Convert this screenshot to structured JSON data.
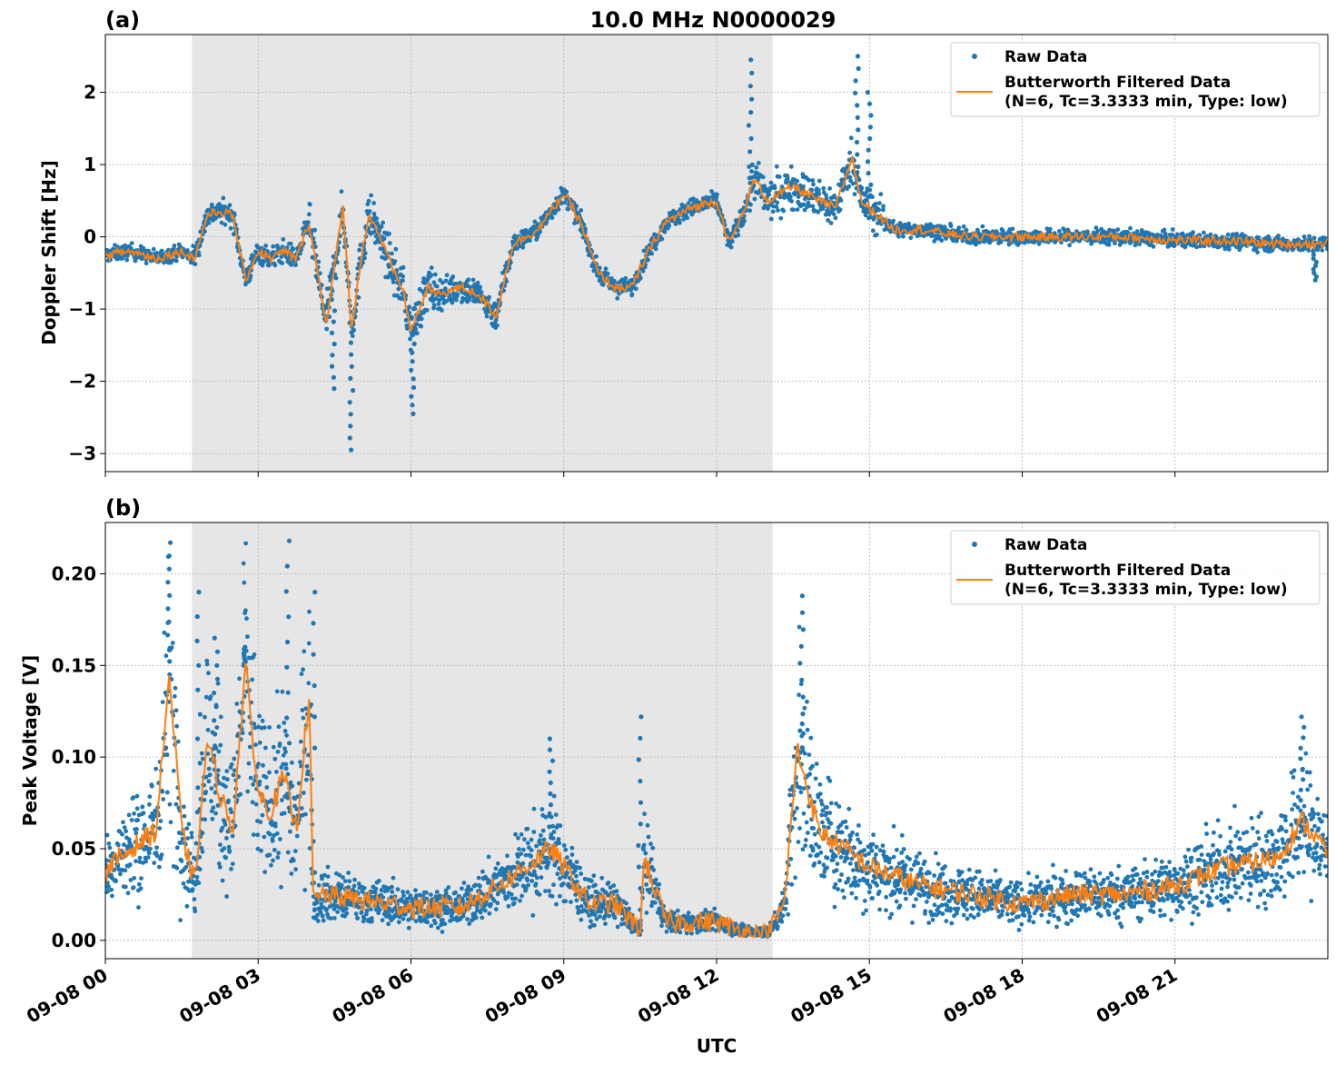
{
  "figure": {
    "title": "10.0 MHz N0000029",
    "xlabel": "UTC",
    "x_tick_labels": [
      "09-08 00",
      "09-08 03",
      "09-08 06",
      "09-08 09",
      "09-08 12",
      "09-08 15",
      "09-08 18",
      "09-08 21"
    ]
  },
  "colors": {
    "raw": "#1f77b4",
    "filtered": "#ff7f0e",
    "shade": "#e6e6e6",
    "grid": "#b0b0b0"
  },
  "panels": {
    "a": {
      "label": "(a)",
      "ylabel": "Doppler Shift [Hz]",
      "y_tick_labels": [
        "2",
        "1",
        "0",
        "−1",
        "−2",
        "−3"
      ],
      "legend": {
        "raw": "Raw Data",
        "filt_line1": "Butterworth Filtered Data",
        "filt_line2": "(N=6, Tc=3.3333 min, Type: low)"
      }
    },
    "b": {
      "label": "(b)",
      "ylabel": "Peak Voltage [V]",
      "y_tick_labels": [
        "0.20",
        "0.15",
        "0.10",
        "0.05",
        "0.00"
      ],
      "legend": {
        "raw": "Raw Data",
        "filt_line1": "Butterworth Filtered Data",
        "filt_line2": "(N=6, Tc=3.3333 min, Type: low)"
      }
    }
  },
  "chart_data": [
    {
      "type": "line",
      "title": "10.0 MHz N0000029",
      "panel": "(a)",
      "xlabel": "UTC",
      "ylabel": "Doppler Shift [Hz]",
      "xlim": [
        "09-08 00:00",
        "09-09 00:00"
      ],
      "ylim": [
        -3.25,
        2.8
      ],
      "grid": true,
      "legend_position": "top-right",
      "shaded_interval": [
        "09-08 01:42",
        "09-08 13:06"
      ],
      "series": [
        {
          "name": "Butterworth Filtered Data",
          "style": "line",
          "color": "#ff7f0e",
          "x": [
            "09-08 00:00",
            "09-08 00:30",
            "09-08 01:00",
            "09-08 01:30",
            "09-08 01:45",
            "09-08 02:00",
            "09-08 02:15",
            "09-08 02:30",
            "09-08 02:45",
            "09-08 03:00",
            "09-08 03:15",
            "09-08 03:30",
            "09-08 03:45",
            "09-08 04:00",
            "09-08 04:10",
            "09-08 04:20",
            "09-08 04:30",
            "09-08 04:40",
            "09-08 04:50",
            "09-08 05:00",
            "09-08 05:10",
            "09-08 05:20",
            "09-08 05:30",
            "09-08 05:40",
            "09-08 05:50",
            "09-08 06:00",
            "09-08 06:10",
            "09-08 06:20",
            "09-08 06:30",
            "09-08 07:00",
            "09-08 07:20",
            "09-08 07:40",
            "09-08 08:00",
            "09-08 08:30",
            "09-08 09:00",
            "09-08 09:20",
            "09-08 09:40",
            "09-08 10:00",
            "09-08 10:20",
            "09-08 10:40",
            "09-08 11:00",
            "09-08 11:30",
            "09-08 12:00",
            "09-08 12:15",
            "09-08 12:30",
            "09-08 12:45",
            "09-08 13:00",
            "09-08 13:30",
            "09-08 14:00",
            "09-08 14:20",
            "09-08 14:40",
            "09-08 14:50",
            "09-08 15:00",
            "09-08 15:30",
            "09-08 16:00",
            "09-08 17:00",
            "09-08 18:00",
            "09-08 19:00",
            "09-08 20:00",
            "09-08 21:00",
            "09-08 22:00",
            "09-08 23:00",
            "09-09 00:00"
          ],
          "values": [
            -0.25,
            -0.2,
            -0.3,
            -0.2,
            -0.3,
            0.3,
            0.35,
            0.3,
            -0.6,
            -0.2,
            -0.3,
            -0.2,
            -0.3,
            0.2,
            -0.5,
            -1.2,
            -0.4,
            0.4,
            -1.3,
            -0.4,
            0.3,
            0.1,
            -0.2,
            -0.5,
            -0.7,
            -1.3,
            -1.0,
            -0.7,
            -0.8,
            -0.7,
            -0.8,
            -1.1,
            -0.1,
            0.1,
            0.6,
            0.2,
            -0.5,
            -0.7,
            -0.7,
            -0.2,
            0.2,
            0.4,
            0.5,
            -0.1,
            0.3,
            0.8,
            0.5,
            0.7,
            0.5,
            0.4,
            1.1,
            0.5,
            0.4,
            0.1,
            0.1,
            0.0,
            0.0,
            0.0,
            0.0,
            -0.05,
            -0.05,
            -0.1,
            -0.1
          ]
        },
        {
          "name": "Raw Data",
          "style": "markers",
          "color": "#1f77b4",
          "x": [
            "09-08 04:28",
            "09-08 04:50",
            "09-08 06:02",
            "09-08 12:40",
            "09-08 14:45",
            "09-08 15:00",
            "09-08 23:45"
          ],
          "values": [
            -2.1,
            -2.95,
            -2.45,
            2.45,
            2.5,
            2.0,
            -0.6
          ]
        }
      ]
    },
    {
      "type": "line",
      "panel": "(b)",
      "xlabel": "UTC",
      "ylabel": "Peak Voltage [V]",
      "xlim": [
        "09-08 00:00",
        "09-09 00:00"
      ],
      "ylim": [
        -0.01,
        0.228
      ],
      "grid": true,
      "legend_position": "top-right",
      "shaded_interval": [
        "09-08 01:42",
        "09-08 13:06"
      ],
      "series": [
        {
          "name": "Butterworth Filtered Data",
          "style": "line",
          "color": "#ff7f0e",
          "x": [
            "09-08 00:00",
            "09-08 00:30",
            "09-08 01:00",
            "09-08 01:15",
            "09-08 01:30",
            "09-08 01:45",
            "09-08 02:00",
            "09-08 02:15",
            "09-08 02:30",
            "09-08 02:45",
            "09-08 03:00",
            "09-08 03:15",
            "09-08 03:30",
            "09-08 03:45",
            "09-08 04:00",
            "09-08 04:05",
            "09-08 04:15",
            "09-08 05:00",
            "09-08 06:00",
            "09-08 07:00",
            "09-08 08:00",
            "09-08 08:45",
            "09-08 09:00",
            "09-08 09:30",
            "09-08 10:00",
            "09-08 10:30",
            "09-08 10:35",
            "09-08 11:00",
            "09-08 12:00",
            "09-08 12:30",
            "09-08 13:00",
            "09-08 13:20",
            "09-08 13:35",
            "09-08 14:00",
            "09-08 14:30",
            "09-08 15:00",
            "09-08 16:00",
            "09-08 17:00",
            "09-08 18:00",
            "09-08 19:00",
            "09-08 20:00",
            "09-08 21:00",
            "09-08 22:00",
            "09-08 23:00",
            "09-08 23:30",
            "09-09 00:00"
          ],
          "values": [
            0.038,
            0.05,
            0.06,
            0.145,
            0.06,
            0.03,
            0.11,
            0.08,
            0.06,
            0.15,
            0.08,
            0.07,
            0.09,
            0.06,
            0.135,
            0.02,
            0.025,
            0.022,
            0.018,
            0.018,
            0.035,
            0.05,
            0.04,
            0.02,
            0.02,
            0.005,
            0.045,
            0.01,
            0.01,
            0.005,
            0.003,
            0.02,
            0.105,
            0.06,
            0.05,
            0.04,
            0.03,
            0.025,
            0.02,
            0.025,
            0.025,
            0.03,
            0.04,
            0.045,
            0.065,
            0.048
          ]
        },
        {
          "name": "Raw Data",
          "style": "markers",
          "color": "#1f77b4",
          "x": [
            "09-08 01:15",
            "09-08 01:50",
            "09-08 02:10",
            "09-08 02:45",
            "09-08 03:35",
            "09-08 04:05",
            "09-08 08:45",
            "09-08 10:30",
            "09-08 13:40",
            "09-08 23:30"
          ],
          "values": [
            0.217,
            0.19,
            0.165,
            0.16,
            0.218,
            0.19,
            0.11,
            0.122,
            0.188,
            0.122
          ]
        }
      ]
    }
  ]
}
